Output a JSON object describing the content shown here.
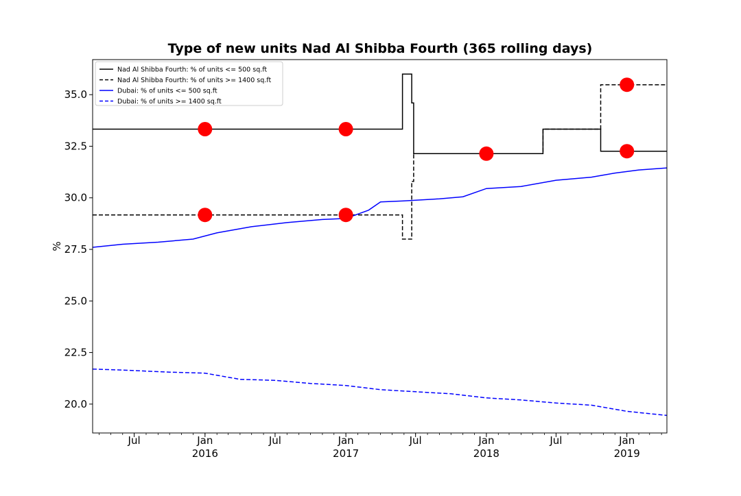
{
  "chart_data": {
    "type": "line",
    "title": "Type of new units Nad Al Shibba Fourth (365 rolling days)",
    "xlabel": "",
    "ylabel": "%",
    "x_range": [
      "2015-03-15",
      "2019-04-15"
    ],
    "ylim": [
      18.6,
      36.7
    ],
    "yticks": [
      "20.0",
      "22.5",
      "25.0",
      "27.5",
      "30.0",
      "32.5",
      "35.0"
    ],
    "x_major_ticks": [
      {
        "date": "2015-07-01",
        "label": "Jul"
      },
      {
        "date": "2016-01-01",
        "label": "Jan\n2016"
      },
      {
        "date": "2016-07-01",
        "label": "Jul"
      },
      {
        "date": "2017-01-01",
        "label": "Jan\n2017"
      },
      {
        "date": "2017-07-01",
        "label": "Jul"
      },
      {
        "date": "2018-01-01",
        "label": "Jan\n2018"
      },
      {
        "date": "2018-07-01",
        "label": "Jul"
      },
      {
        "date": "2019-01-01",
        "label": "Jan\n2019"
      }
    ],
    "grid": false,
    "legend_position": "upper-left",
    "series": [
      {
        "name": "Nad Al Shibba Fourth: % of units <= 500 sq.ft",
        "color": "#000000",
        "style": "solid",
        "step": true,
        "points": [
          [
            "2015-03-15",
            33.33
          ],
          [
            "2017-05-28",
            33.33
          ],
          [
            "2017-05-28",
            36.0
          ],
          [
            "2017-06-21",
            36.0
          ],
          [
            "2017-06-21",
            34.6
          ],
          [
            "2017-06-26",
            34.6
          ],
          [
            "2017-06-26",
            32.14
          ],
          [
            "2018-05-28",
            32.14
          ],
          [
            "2018-05-28",
            33.33
          ],
          [
            "2018-10-25",
            33.33
          ],
          [
            "2018-10-25",
            32.26
          ],
          [
            "2019-04-15",
            32.26
          ]
        ]
      },
      {
        "name": "Nad Al Shibba Fourth: % of units >= 1400 sq.ft",
        "color": "#000000",
        "style": "dashed",
        "step": true,
        "points": [
          [
            "2015-03-15",
            29.17
          ],
          [
            "2017-05-28",
            29.17
          ],
          [
            "2017-05-28",
            28.0
          ],
          [
            "2017-06-21",
            28.0
          ],
          [
            "2017-06-21",
            30.8
          ],
          [
            "2017-06-26",
            30.8
          ],
          [
            "2017-06-26",
            32.14
          ],
          [
            "2018-05-28",
            32.14
          ],
          [
            "2018-05-28",
            33.33
          ],
          [
            "2018-10-25",
            33.33
          ],
          [
            "2018-10-25",
            35.48
          ],
          [
            "2019-04-15",
            35.48
          ]
        ]
      },
      {
        "name": "Dubai: % of units <= 500 sq.ft",
        "color": "#0000ff",
        "style": "solid",
        "step": false,
        "points": [
          [
            "2015-03-15",
            27.6
          ],
          [
            "2015-06-01",
            27.75
          ],
          [
            "2015-09-01",
            27.85
          ],
          [
            "2015-12-01",
            28.0
          ],
          [
            "2016-02-01",
            28.3
          ],
          [
            "2016-05-01",
            28.6
          ],
          [
            "2016-08-01",
            28.8
          ],
          [
            "2016-11-01",
            28.95
          ],
          [
            "2017-01-01",
            29.0
          ],
          [
            "2017-03-01",
            29.4
          ],
          [
            "2017-04-01",
            29.8
          ],
          [
            "2017-06-01",
            29.85
          ],
          [
            "2017-09-01",
            29.95
          ],
          [
            "2017-11-01",
            30.05
          ],
          [
            "2018-01-01",
            30.45
          ],
          [
            "2018-04-01",
            30.55
          ],
          [
            "2018-07-01",
            30.85
          ],
          [
            "2018-10-01",
            31.0
          ],
          [
            "2018-12-01",
            31.2
          ],
          [
            "2019-02-01",
            31.35
          ],
          [
            "2019-04-15",
            31.45
          ]
        ]
      },
      {
        "name": "Dubai: % of units >= 1400 sq.ft",
        "color": "#0000ff",
        "style": "dashed",
        "step": false,
        "points": [
          [
            "2015-03-15",
            21.7
          ],
          [
            "2015-06-01",
            21.65
          ],
          [
            "2015-10-01",
            21.55
          ],
          [
            "2016-01-01",
            21.5
          ],
          [
            "2016-04-01",
            21.2
          ],
          [
            "2016-07-01",
            21.15
          ],
          [
            "2016-10-01",
            21.0
          ],
          [
            "2017-01-01",
            20.9
          ],
          [
            "2017-04-01",
            20.7
          ],
          [
            "2017-07-01",
            20.6
          ],
          [
            "2017-10-01",
            20.5
          ],
          [
            "2018-01-01",
            20.3
          ],
          [
            "2018-04-01",
            20.2
          ],
          [
            "2018-07-01",
            20.05
          ],
          [
            "2018-10-01",
            19.95
          ],
          [
            "2019-01-01",
            19.65
          ],
          [
            "2019-04-15",
            19.45
          ]
        ]
      }
    ],
    "markers": {
      "color": "#ff0000",
      "points": [
        [
          "2016-01-01",
          33.33
        ],
        [
          "2017-01-01",
          33.33
        ],
        [
          "2018-01-01",
          32.14
        ],
        [
          "2019-01-01",
          32.26
        ],
        [
          "2016-01-01",
          29.17
        ],
        [
          "2017-01-01",
          29.17
        ],
        [
          "2019-01-01",
          35.48
        ]
      ]
    }
  }
}
